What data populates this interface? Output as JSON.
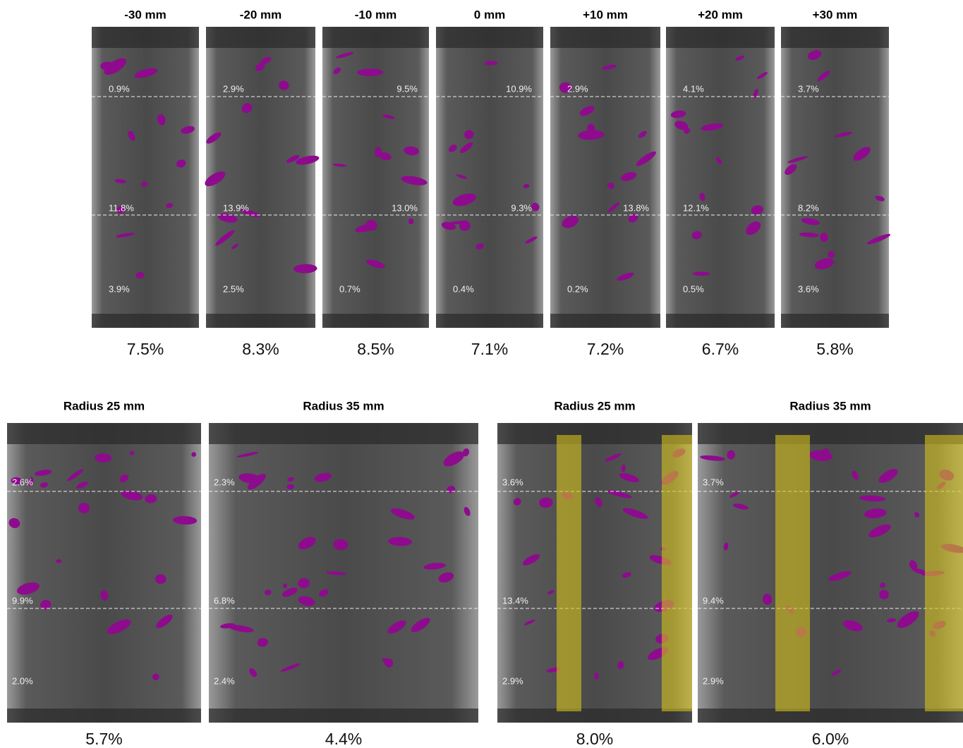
{
  "top_panels": [
    {
      "label": "-30 mm",
      "regions": [
        "0.9%",
        "11.8%",
        "3.9%"
      ],
      "total": "7.5%"
    },
    {
      "label": "-20 mm",
      "regions": [
        "2.9%",
        "13.9%",
        "2.5%"
      ],
      "total": "8.3%"
    },
    {
      "label": "-10 mm",
      "regions": [
        "9.5%",
        "13.0%",
        "0.7%"
      ],
      "total": "8.5%"
    },
    {
      "label": "0 mm",
      "regions": [
        "10.9%",
        "9.3%",
        "0.4%"
      ],
      "total": "7.1%"
    },
    {
      "label": "+10 mm",
      "regions": [
        "2.9%",
        "13.8%",
        "0.2%"
      ],
      "total": "7.2%"
    },
    {
      "label": "+20 mm",
      "regions": [
        "4.1%",
        "12.1%",
        "0.5%"
      ],
      "total": "6.7%"
    },
    {
      "label": "+30 mm",
      "regions": [
        "3.7%",
        "8.2%",
        "3.6%"
      ],
      "total": "5.8%"
    }
  ],
  "bottom_panels": [
    {
      "title": "Radius 25 mm",
      "regions": [
        "2.6%",
        "9.9%",
        "2.0%"
      ],
      "total": "5.7%"
    },
    {
      "title": "Radius 35 mm",
      "regions": [
        "2.3%",
        "6.8%",
        "2.4%"
      ],
      "total": "4.4%"
    },
    {
      "title": "Radius 25 mm",
      "regions": [
        "3.6%",
        "13.4%",
        "2.9%"
      ],
      "total": "8.0%"
    },
    {
      "title": "Radius 35 mm",
      "regions": [
        "3.7%",
        "9.4%",
        "2.9%"
      ],
      "total": "6.0%"
    }
  ]
}
